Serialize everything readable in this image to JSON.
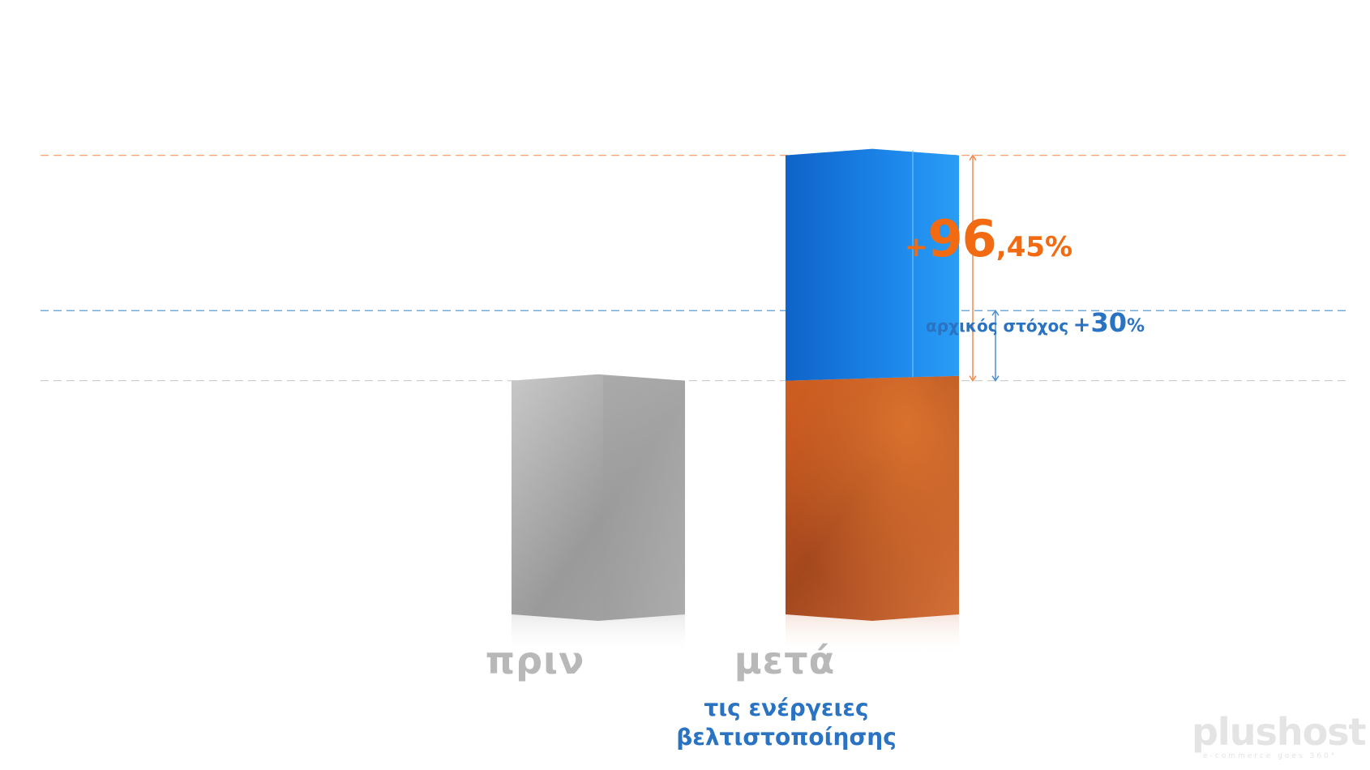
{
  "chart_data": {
    "type": "bar",
    "categories": [
      "πριν",
      "μετά"
    ],
    "category_subtitle": [
      "",
      "τις ενέργειες βελτιστοποίησης"
    ],
    "category_subtitle_lines": [
      "τις ενέργειες",
      "βελτιστοποίησης"
    ],
    "series": [
      {
        "values": [
          1.0,
          1.0
        ],
        "color": "#d46425"
      },
      {
        "values": [
          0,
          0.9645
        ],
        "color": "#1f84e0"
      }
    ],
    "before_color": "#a3a3a3",
    "target_increase": 0.3,
    "ylim": [
      0,
      2.05
    ],
    "grid": true,
    "annotations": {
      "increase": {
        "sign": "+",
        "whole": "96",
        "decimal": ",45%"
      },
      "target": {
        "text": "αρχικός στόχος",
        "sign": "+",
        "num": "30",
        "pct": "%"
      }
    },
    "colors": {
      "orange_accent": "#f26a12",
      "blue_accent": "#2a73c2",
      "label_gray": "#b8b8b8"
    }
  },
  "brand": {
    "name": "plushost",
    "tagline": "e-commerce goes 360°"
  }
}
